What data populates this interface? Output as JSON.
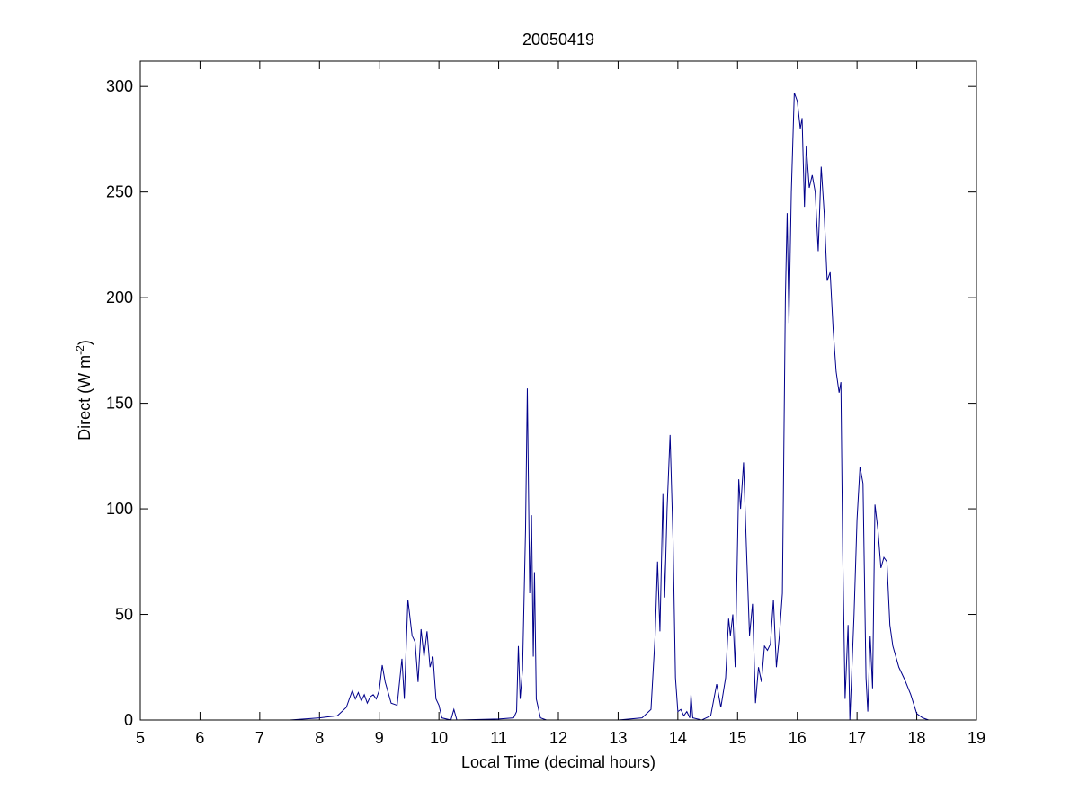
{
  "chart_data": {
    "type": "line",
    "title": "20050419",
    "x_label": "Local Time (decimal hours)",
    "y_label": {
      "text": "Direct (W m",
      "sup": "-2",
      "end": ")"
    },
    "color": "#00008b",
    "xlim": [
      5,
      19
    ],
    "ylim": [
      0,
      312
    ],
    "xticks": [
      5,
      6,
      7,
      8,
      9,
      10,
      11,
      12,
      13,
      14,
      15,
      16,
      17,
      18,
      19
    ],
    "yticks": [
      0,
      50,
      100,
      150,
      200,
      250,
      300
    ],
    "x": [
      6.5,
      7.5,
      8.0,
      8.3,
      8.45,
      8.55,
      8.6,
      8.65,
      8.7,
      8.75,
      8.8,
      8.85,
      8.9,
      8.95,
      9.0,
      9.05,
      9.1,
      9.2,
      9.3,
      9.38,
      9.42,
      9.48,
      9.55,
      9.6,
      9.65,
      9.7,
      9.75,
      9.8,
      9.85,
      9.9,
      9.95,
      10.0,
      10.05,
      10.2,
      10.25,
      10.3,
      11.0,
      11.25,
      11.3,
      11.33,
      11.36,
      11.4,
      11.45,
      11.48,
      11.52,
      11.55,
      11.58,
      11.6,
      11.63,
      11.7,
      11.8,
      13.0,
      13.4,
      13.55,
      13.62,
      13.66,
      13.7,
      13.75,
      13.78,
      13.82,
      13.87,
      13.92,
      13.96,
      14.0,
      14.05,
      14.1,
      14.15,
      14.2,
      14.22,
      14.25,
      14.4,
      14.55,
      14.65,
      14.72,
      14.8,
      14.85,
      14.88,
      14.92,
      14.96,
      15.02,
      15.05,
      15.1,
      15.15,
      15.2,
      15.25,
      15.3,
      15.35,
      15.4,
      15.45,
      15.5,
      15.55,
      15.6,
      15.65,
      15.7,
      15.75,
      15.8,
      15.83,
      15.86,
      15.9,
      15.95,
      16.0,
      16.05,
      16.08,
      16.12,
      16.15,
      16.2,
      16.25,
      16.3,
      16.35,
      16.4,
      16.45,
      16.5,
      16.55,
      16.6,
      16.65,
      16.7,
      16.73,
      16.76,
      16.8,
      16.85,
      16.88,
      16.95,
      17.0,
      17.05,
      17.1,
      17.15,
      17.18,
      17.22,
      17.26,
      17.3,
      17.35,
      17.4,
      17.45,
      17.5,
      17.55,
      17.6,
      17.7,
      17.8,
      17.9,
      18.0,
      18.1,
      18.2
    ],
    "values": [
      0,
      0,
      1,
      2,
      6,
      14,
      10,
      13,
      9,
      12,
      8,
      11,
      12,
      10,
      14,
      26,
      18,
      8,
      7,
      29,
      10,
      57,
      40,
      37,
      18,
      43,
      30,
      42,
      25,
      30,
      10,
      7,
      1,
      0,
      5,
      0,
      0.5,
      1,
      4,
      35,
      10,
      24,
      90,
      157,
      60,
      97,
      30,
      70,
      10,
      1,
      0,
      0,
      1,
      5,
      40,
      75,
      42,
      107,
      58,
      100,
      135,
      85,
      20,
      4,
      5,
      2,
      4,
      1,
      12,
      1,
      0,
      2,
      17,
      6,
      20,
      48,
      40,
      50,
      25,
      114,
      100,
      122,
      80,
      40,
      55,
      8,
      25,
      18,
      35,
      33,
      36,
      57,
      25,
      40,
      60,
      200,
      240,
      188,
      250,
      297,
      293,
      280,
      285,
      243,
      272,
      252,
      258,
      250,
      222,
      262,
      240,
      208,
      212,
      185,
      165,
      155,
      160,
      80,
      10,
      45,
      0,
      50,
      95,
      120,
      112,
      20,
      4,
      40,
      15,
      102,
      90,
      72,
      77,
      75,
      45,
      35,
      25,
      19,
      12,
      3,
      1,
      0
    ]
  }
}
